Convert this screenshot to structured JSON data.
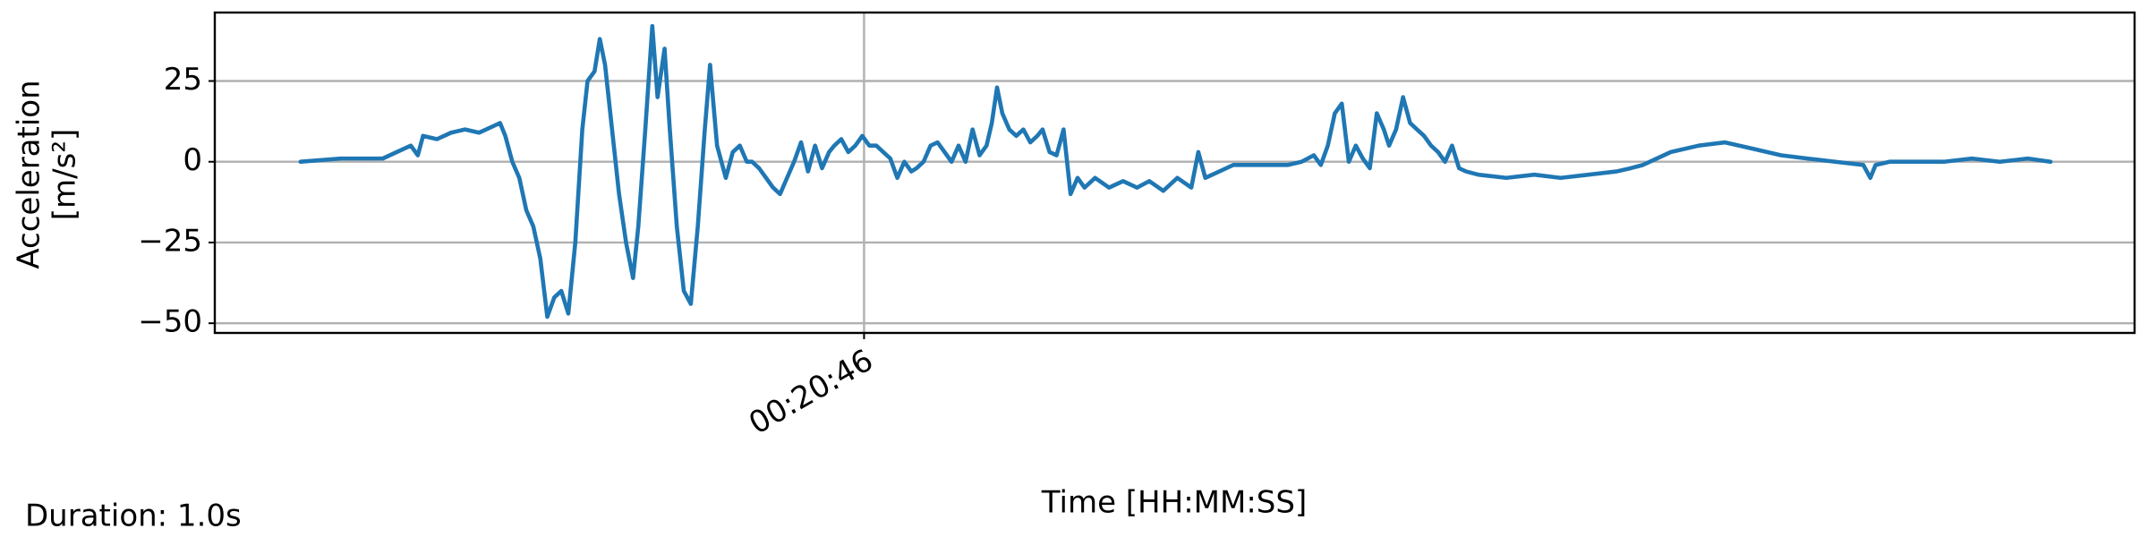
{
  "chart_data": {
    "type": "line",
    "xlabel": "Time [HH:MM:SS]",
    "ylabel": [
      "Acceleration",
      "[m/s²]"
    ],
    "annotation": "Duration: 1.0s",
    "color": "#1f77b4",
    "grid": true,
    "x": [
      1245.678,
      1245.701,
      1245.725,
      1245.733,
      1245.741,
      1245.745,
      1245.748,
      1245.756,
      1245.764,
      1245.772,
      1245.78,
      1245.788,
      1245.792,
      1245.795,
      1245.799,
      1245.803,
      1245.807,
      1245.811,
      1245.815,
      1245.819,
      1245.823,
      1245.827,
      1245.831,
      1245.835,
      1245.839,
      1245.842,
      1245.846,
      1245.849,
      1245.852,
      1245.856,
      1245.86,
      1245.864,
      1245.868,
      1245.871,
      1245.875,
      1245.879,
      1245.882,
      1245.886,
      1245.889,
      1245.893,
      1245.897,
      1245.901,
      1245.905,
      1245.909,
      1245.912,
      1245.916,
      1245.921,
      1245.925,
      1245.929,
      1245.933,
      1245.936,
      1245.94,
      1245.944,
      1245.948,
      1245.952,
      1245.956,
      1245.96,
      1245.964,
      1245.968,
      1245.972,
      1245.976,
      1245.98,
      1245.983,
      1245.987,
      1245.991,
      1245.995,
      1245.999,
      1246.003,
      1246.007,
      1246.011,
      1246.015,
      1246.019,
      1246.023,
      1246.027,
      1246.03,
      1246.034,
      1246.038,
      1246.042,
      1246.046,
      1246.05,
      1246.054,
      1246.058,
      1246.062,
      1246.066,
      1246.07,
      1246.073,
      1246.076,
      1246.079,
      1246.083,
      1246.087,
      1246.091,
      1246.095,
      1246.099,
      1246.102,
      1246.106,
      1246.11,
      1246.114,
      1246.118,
      1246.122,
      1246.126,
      1246.132,
      1246.14,
      1246.148,
      1246.156,
      1246.163,
      1246.171,
      1246.179,
      1246.187,
      1246.191,
      1246.195,
      1246.203,
      1246.211,
      1246.226,
      1246.242,
      1246.25,
      1246.257,
      1246.261,
      1246.265,
      1246.269,
      1246.273,
      1246.277,
      1246.281,
      1246.285,
      1246.289,
      1246.293,
      1246.297,
      1246.3,
      1246.304,
      1246.308,
      1246.312,
      1246.316,
      1246.32,
      1246.324,
      1246.328,
      1246.332,
      1246.336,
      1246.34,
      1246.344,
      1246.351,
      1246.367,
      1246.383,
      1246.398,
      1246.414,
      1246.43,
      1246.438,
      1246.445,
      1246.453,
      1246.461,
      1246.477,
      1246.492,
      1246.508,
      1246.516,
      1246.524,
      1246.539,
      1246.555,
      1246.571,
      1246.575,
      1246.578,
      1246.586,
      1246.602,
      1246.617,
      1246.633,
      1246.649,
      1246.665,
      1246.678
    ],
    "values": [
      0,
      1,
      1,
      3,
      5,
      2,
      8,
      7,
      9,
      10,
      9,
      11,
      12,
      8,
      0,
      -5,
      -15,
      -20,
      -30,
      -48,
      -42,
      -40,
      -47,
      -25,
      10,
      25,
      28,
      38,
      30,
      10,
      -10,
      -25,
      -36,
      -20,
      10,
      42,
      20,
      35,
      10,
      -20,
      -40,
      -44,
      -20,
      10,
      30,
      5,
      -5,
      3,
      5,
      0,
      0,
      -2,
      -5,
      -8,
      -10,
      -5,
      0,
      6,
      -3,
      5,
      -2,
      3,
      5,
      7,
      3,
      5,
      8,
      5,
      5,
      3,
      1,
      -5,
      0,
      -3,
      -2,
      0,
      5,
      6,
      3,
      0,
      5,
      0,
      10,
      2,
      5,
      12,
      23,
      15,
      10,
      8,
      10,
      6,
      8,
      10,
      3,
      2,
      10,
      -10,
      -5,
      -8,
      -5,
      -8,
      -6,
      -8,
      -6,
      -9,
      -5,
      -8,
      3,
      -5,
      -3,
      -1,
      -1,
      -1,
      0,
      2,
      -1,
      5,
      15,
      18,
      0,
      5,
      1,
      -2,
      15,
      10,
      5,
      10,
      20,
      12,
      10,
      8,
      5,
      3,
      0,
      5,
      -2,
      -3,
      -4,
      -5,
      -4,
      -5,
      -4,
      -3,
      -2,
      -1,
      1,
      3,
      5,
      6,
      4,
      3,
      2,
      1,
      0,
      -1,
      -5,
      -1,
      0,
      0,
      0,
      1,
      0,
      1,
      0
    ],
    "xlim": [
      1245.629,
      1246.726
    ],
    "xticks": [
      {
        "value": 1246,
        "label": "00:20:46"
      }
    ],
    "ylim": [
      -53,
      46.2
    ],
    "yticks": [
      {
        "value": -50,
        "label": "−50"
      },
      {
        "value": -25,
        "label": "−25"
      },
      0,
      25
    ]
  }
}
